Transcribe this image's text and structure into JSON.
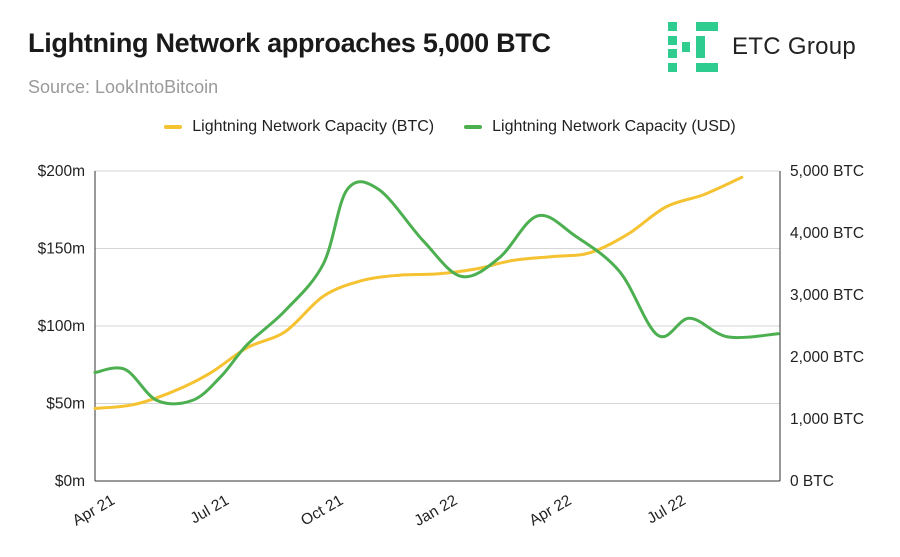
{
  "header": {
    "title": "Lightning Network approaches 5,000 BTC",
    "source": "Source: LookIntoBitcoin"
  },
  "brand": {
    "name": "ETC Group",
    "logo_icon": "etc-logo-icon",
    "color": "#2ecc8f"
  },
  "chart_data": {
    "type": "line",
    "x_labels": [
      "Apr 21",
      "Jul 21",
      "Oct 21",
      "Jan 22",
      "Apr 22",
      "Jul 22"
    ],
    "x_range": [
      "Apr 21",
      "Oct 22"
    ],
    "y_left": {
      "ticks": [
        "$0m",
        "$50m",
        "$100m",
        "$150m",
        "$200m"
      ],
      "range": [
        0,
        200
      ],
      "unit": "USD millions"
    },
    "y_right": {
      "ticks": [
        "0 BTC",
        "1,000 BTC",
        "2,000 BTC",
        "3,000 BTC",
        "4,000 BTC",
        "5,000 BTC"
      ],
      "range": [
        0,
        5000
      ],
      "unit": "BTC"
    },
    "grid": true,
    "legend_position": "top-center",
    "series": [
      {
        "name": "Lightning Network Capacity (BTC)",
        "axis": "right",
        "color": "#f5c232",
        "points": [
          [
            "2021-04-01",
            1170
          ],
          [
            "2021-05-01",
            1230
          ],
          [
            "2021-06-01",
            1430
          ],
          [
            "2021-07-01",
            1730
          ],
          [
            "2021-08-01",
            2150
          ],
          [
            "2021-09-01",
            2410
          ],
          [
            "2021-10-01",
            2980
          ],
          [
            "2021-11-01",
            3230
          ],
          [
            "2021-12-01",
            3320
          ],
          [
            "2022-01-01",
            3340
          ],
          [
            "2022-02-01",
            3420
          ],
          [
            "2022-03-01",
            3560
          ],
          [
            "2022-04-01",
            3620
          ],
          [
            "2022-05-01",
            3680
          ],
          [
            "2022-06-01",
            3980
          ],
          [
            "2022-07-01",
            4420
          ],
          [
            "2022-08-01",
            4620
          ],
          [
            "2022-09-01",
            4900
          ]
        ]
      },
      {
        "name": "Lightning Network Capacity (USD)",
        "axis": "left",
        "color": "#4caf50",
        "points": [
          [
            "2021-04-01",
            70
          ],
          [
            "2021-04-25",
            72
          ],
          [
            "2021-05-20",
            52
          ],
          [
            "2021-06-18",
            52
          ],
          [
            "2021-07-10",
            67
          ],
          [
            "2021-08-01",
            88
          ],
          [
            "2021-09-01",
            110
          ],
          [
            "2021-10-01",
            140
          ],
          [
            "2021-10-20",
            188
          ],
          [
            "2021-11-15",
            188
          ],
          [
            "2021-12-20",
            155
          ],
          [
            "2022-01-20",
            132
          ],
          [
            "2022-02-20",
            144
          ],
          [
            "2022-03-20",
            171
          ],
          [
            "2022-04-20",
            158
          ],
          [
            "2022-05-25",
            135
          ],
          [
            "2022-06-25",
            94
          ],
          [
            "2022-07-20",
            105
          ],
          [
            "2022-08-20",
            93
          ],
          [
            "2022-09-30",
            95
          ]
        ]
      }
    ]
  }
}
